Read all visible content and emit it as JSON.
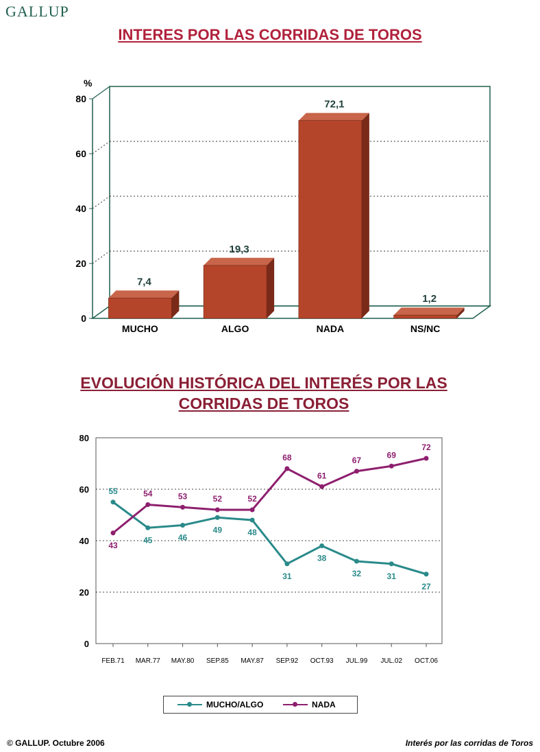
{
  "header": {
    "logo": "GALLUP"
  },
  "footer": {
    "left": "©  GALLUP. Octubre 2006",
    "right": "Interés por las corridas de Toros"
  },
  "colors": {
    "bar": "#b5452a",
    "title1": "#b0213b",
    "title2": "#8a1f35",
    "frame": "#1f5f4f",
    "series_teal": "#2a8a8a",
    "series_purple": "#8e1f6e"
  },
  "chart_data": [
    {
      "type": "bar",
      "title": "INTERES POR LAS CORRIDAS DE TOROS",
      "ylabel": "%",
      "ylim": [
        0,
        80
      ],
      "yticks": [
        "0",
        "20",
        "40",
        "60",
        "80"
      ],
      "categories": [
        "MUCHO",
        "ALGO",
        "NADA",
        "NS/NC"
      ],
      "values": [
        7.4,
        19.3,
        72.1,
        1.2
      ],
      "labels": [
        "7,4",
        "19,3",
        "72,1",
        "1,2"
      ],
      "grid": true
    },
    {
      "type": "line",
      "title_lines": [
        "EVOLUCIÓN HISTÓRICA DEL INTERÉS POR LAS",
        "CORRIDAS DE TOROS"
      ],
      "ylim": [
        0,
        80
      ],
      "yticks": [
        "0",
        "20",
        "40",
        "60",
        "80"
      ],
      "x": [
        "FEB.71",
        "MAR.77",
        "MAY.80",
        "SEP.85",
        "MAY.87",
        "SEP.92",
        "OCT.93",
        "JUL.99",
        "JUL.02",
        "OCT.06"
      ],
      "series": [
        {
          "name": "MUCHO/ALGO",
          "values": [
            55,
            45,
            46,
            49,
            48,
            31,
            38,
            32,
            31,
            27
          ]
        },
        {
          "name": "NADA",
          "values": [
            43,
            54,
            53,
            52,
            52,
            68,
            61,
            67,
            69,
            72
          ]
        }
      ],
      "legend": "bottom",
      "grid": true
    }
  ]
}
